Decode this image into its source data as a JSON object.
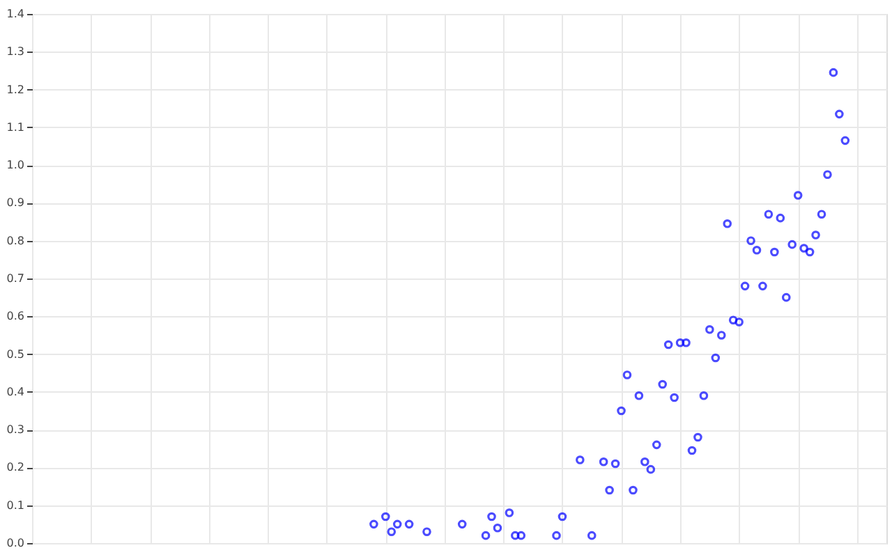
{
  "chart_data": {
    "type": "scatter",
    "marker": "circle",
    "grid": true,
    "tick_labels": "y",
    "categories": [
      null,
      null,
      null,
      null,
      null,
      null,
      null,
      null,
      null,
      null,
      null,
      null,
      null,
      null,
      null,
      null,
      null,
      null,
      null,
      null,
      null,
      null,
      null,
      null,
      null,
      null,
      null,
      null,
      null,
      null,
      null,
      null,
      null,
      null,
      null,
      null,
      null,
      null,
      null,
      null,
      null,
      null,
      null,
      null,
      null,
      null,
      null,
      null,
      null,
      null,
      null,
      null,
      null,
      null,
      null,
      null,
      null,
      null,
      null,
      null,
      null,
      null,
      null,
      null,
      null,
      null,
      null,
      null,
      null,
      null,
      null,
      null,
      null,
      null,
      null,
      null,
      null,
      null,
      null,
      null,
      null,
      null,
      null,
      null,
      null,
      null,
      null,
      null,
      null,
      null,
      null,
      null,
      null,
      null,
      null,
      null,
      null,
      null,
      null,
      null,
      null,
      null,
      null,
      null,
      null,
      null,
      null,
      null,
      null,
      null,
      null,
      null,
      null,
      null,
      null,
      null,
      null,
      null,
      null,
      null,
      null,
      null,
      null,
      null,
      null,
      null,
      null,
      null,
      null,
      null,
      null,
      null,
      null,
      null,
      null,
      null,
      null,
      null,
      null,
      null,
      null,
      null,
      null,
      null,
      null,
      null
    ],
    "ylim": [
      0,
      1.4
    ],
    "yticks": [
      {
        "value": 0,
        "label": "0.0"
      },
      0.1,
      0.2,
      0.3,
      0.4,
      0.5,
      0.6,
      0.7,
      0.8,
      0.9,
      {
        "value": 1,
        "label": "1.0"
      },
      1.1,
      1.2,
      1.3,
      1.4
    ],
    "series": [
      {
        "color": "#0000ff",
        "values": [
          null,
          null,
          null,
          null,
          null,
          null,
          null,
          null,
          null,
          null,
          null,
          null,
          null,
          null,
          null,
          null,
          null,
          null,
          null,
          null,
          null,
          null,
          null,
          null,
          null,
          null,
          null,
          null,
          null,
          null,
          null,
          null,
          null,
          null,
          null,
          null,
          null,
          null,
          null,
          null,
          null,
          null,
          null,
          null,
          null,
          null,
          null,
          null,
          null,
          null,
          null,
          null,
          null,
          null,
          null,
          null,
          null,
          null,
          0.05,
          null,
          0.07,
          0.03,
          0.05,
          null,
          0.05,
          null,
          null,
          0.03,
          null,
          null,
          null,
          null,
          null,
          0.05,
          null,
          null,
          null,
          0.02,
          0.07,
          0.04,
          null,
          0.08,
          0.02,
          0.02,
          null,
          null,
          null,
          null,
          null,
          0.02,
          0.07,
          null,
          null,
          0.22,
          null,
          0.02,
          null,
          0.215,
          0.14,
          0.21,
          0.35,
          0.445,
          0.14,
          0.39,
          0.215,
          0.195,
          0.26,
          0.42,
          0.525,
          0.385,
          0.53,
          0.53,
          0.245,
          0.28,
          0.39,
          0.565,
          0.49,
          0.55,
          0.845,
          0.59,
          0.585,
          0.68,
          0.8,
          0.775,
          0.68,
          0.87,
          0.77,
          0.86,
          0.65,
          0.79,
          0.92,
          0.78,
          0.77,
          0.815,
          0.87,
          0.975,
          1.245,
          1.135,
          1.065,
          null,
          null,
          null,
          null,
          null,
          null,
          null
        ]
      }
    ]
  }
}
